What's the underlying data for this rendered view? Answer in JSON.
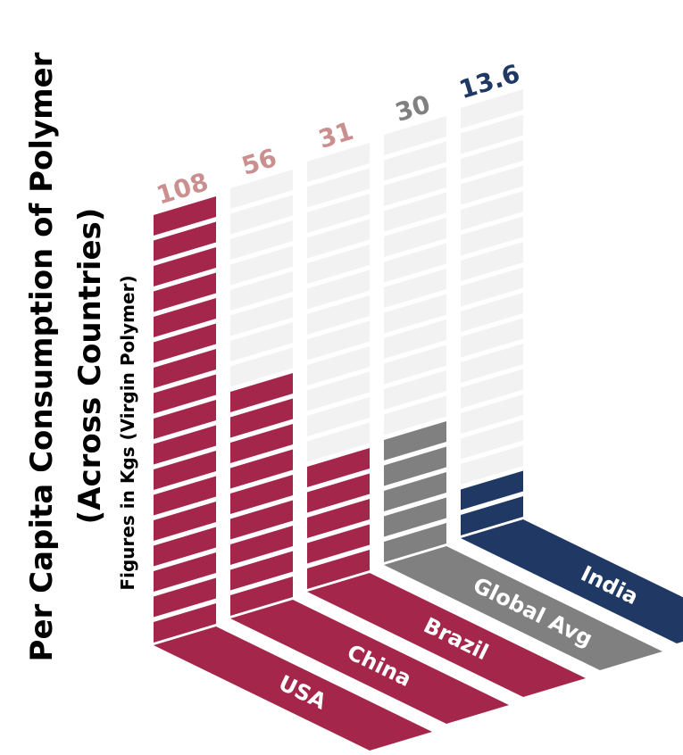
{
  "chart_data": {
    "type": "bar",
    "title": "Per Capita Consumption of Polymer",
    "subtitle": "(Across Countries)",
    "ylabel": "Figures in Kgs  (Virgin Polymer)",
    "categories": [
      "USA",
      "China",
      "Brazil",
      "Global Avg",
      "India"
    ],
    "values": [
      108,
      56,
      31,
      30,
      13.6
    ],
    "value_labels": [
      "108",
      "56",
      "31",
      "30",
      "13.6"
    ],
    "colors": [
      "#a4264a",
      "#a4264a",
      "#a4264a",
      "#808080",
      "#1f3864"
    ],
    "value_label_colors": [
      "#c9908f",
      "#c9908f",
      "#c9908f",
      "#808080",
      "#1f3864"
    ],
    "background_segment_color": "#f2f2f2",
    "ylim": [
      0,
      108
    ],
    "legend": "none",
    "grid": false
  }
}
